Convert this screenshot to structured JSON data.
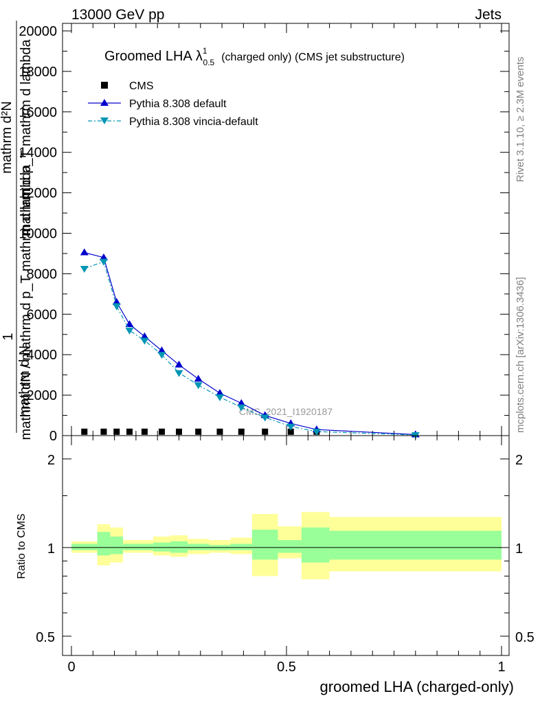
{
  "header": {
    "process": "13000 GeV pp",
    "category": "Jets"
  },
  "side_labels": {
    "rivet": "Rivet 3.1.10, ≥ 2.3M events",
    "mcplots": "mcplots.cern.ch [arXiv:1306.3436]"
  },
  "chart_data": [
    {
      "type": "line",
      "title": "Groomed LHA",
      "title_symbol": "λ",
      "title_sup": "1",
      "title_sub": "0.5",
      "title_suffix": "(charged only) (CMS jet substructure)",
      "analysis_id": "CMS_2021_I1920187",
      "ylabel_top": "1",
      "ylabel_num": "mathrm d²N",
      "ylabel_den": "mathrm d p_T mathrm d lambda",
      "ylabel_inner_num": "mathrm d N",
      "ylabel_inner_den": "mathrm dN / mathrm d p_T mathrm d lambda",
      "xlim": [
        0,
        1
      ],
      "ylim": [
        0,
        20000
      ],
      "yticks": [
        "0",
        "2000",
        "4000",
        "6000",
        "8000",
        "10000",
        "12000",
        "14000",
        "16000",
        "18000",
        "20000"
      ],
      "yticks_values": [
        0,
        2000,
        4000,
        6000,
        8000,
        10000,
        12000,
        14000,
        16000,
        18000,
        20000
      ],
      "legend_position": "top-left",
      "x": [
        0.03,
        0.075,
        0.105,
        0.135,
        0.17,
        0.21,
        0.25,
        0.295,
        0.345,
        0.395,
        0.45,
        0.51,
        0.57,
        0.8
      ],
      "series": [
        {
          "name": "CMS",
          "style": "markers",
          "marker": "square",
          "color": "#000000",
          "values": [
            40,
            40,
            40,
            40,
            40,
            40,
            40,
            40,
            40,
            40,
            40,
            40,
            40,
            null
          ]
        },
        {
          "name": "Pythia 8.308 default",
          "style": "solid",
          "marker": "triangle-up",
          "color": "#0000cc",
          "values": [
            9050,
            8800,
            6600,
            5500,
            4900,
            4200,
            3500,
            2800,
            2100,
            1600,
            1000,
            600,
            300,
            50
          ]
        },
        {
          "name": "Pythia 8.308 vincia-default",
          "style": "dashdot",
          "marker": "triangle-down",
          "color": "#0096b4",
          "values": [
            8250,
            8600,
            6400,
            5200,
            4700,
            4000,
            3100,
            2500,
            1900,
            1400,
            900,
            450,
            200,
            30
          ]
        }
      ]
    },
    {
      "type": "area",
      "ylabel": "Ratio to CMS",
      "xlabel": "groomed LHA (charged-only)",
      "xlim": [
        0,
        1
      ],
      "ylim": [
        0.43,
        2.4
      ],
      "log_y": true,
      "yticks": [
        "0.5",
        "1",
        "2"
      ],
      "yticks_values": [
        0.5,
        1,
        2
      ],
      "xticks": [
        "0",
        "0.5",
        "1"
      ],
      "xticks_values": [
        0,
        0.5,
        1
      ],
      "band_colors": {
        "inner": "#99ff99",
        "outer": "#ffff99"
      },
      "bins": [
        {
          "lo": 0.0,
          "hi": 0.06,
          "inner": [
            0.98,
            1.03
          ],
          "outer": [
            0.96,
            1.05
          ]
        },
        {
          "lo": 0.06,
          "hi": 0.09,
          "inner": [
            0.94,
            1.13
          ],
          "outer": [
            0.87,
            1.2
          ]
        },
        {
          "lo": 0.09,
          "hi": 0.12,
          "inner": [
            0.95,
            1.09
          ],
          "outer": [
            0.89,
            1.17
          ]
        },
        {
          "lo": 0.12,
          "hi": 0.15,
          "inner": [
            0.98,
            1.03
          ],
          "outer": [
            0.96,
            1.06
          ]
        },
        {
          "lo": 0.15,
          "hi": 0.19,
          "inner": [
            0.98,
            1.03
          ],
          "outer": [
            0.96,
            1.06
          ]
        },
        {
          "lo": 0.19,
          "hi": 0.23,
          "inner": [
            0.97,
            1.04
          ],
          "outer": [
            0.94,
            1.09
          ]
        },
        {
          "lo": 0.23,
          "hi": 0.27,
          "inner": [
            0.96,
            1.05
          ],
          "outer": [
            0.93,
            1.1
          ]
        },
        {
          "lo": 0.27,
          "hi": 0.32,
          "inner": [
            0.98,
            1.03
          ],
          "outer": [
            0.95,
            1.07
          ]
        },
        {
          "lo": 0.32,
          "hi": 0.37,
          "inner": [
            0.98,
            1.02
          ],
          "outer": [
            0.96,
            1.06
          ]
        },
        {
          "lo": 0.37,
          "hi": 0.42,
          "inner": [
            0.98,
            1.03
          ],
          "outer": [
            0.95,
            1.08
          ]
        },
        {
          "lo": 0.42,
          "hi": 0.48,
          "inner": [
            0.91,
            1.15
          ],
          "outer": [
            0.8,
            1.3
          ]
        },
        {
          "lo": 0.48,
          "hi": 0.535,
          "inner": [
            0.96,
            1.06
          ],
          "outer": [
            0.92,
            1.18
          ]
        },
        {
          "lo": 0.535,
          "hi": 0.6,
          "inner": [
            0.89,
            1.17
          ],
          "outer": [
            0.78,
            1.32
          ]
        },
        {
          "lo": 0.6,
          "hi": 1.0,
          "inner": [
            0.91,
            1.14
          ],
          "outer": [
            0.83,
            1.27
          ]
        }
      ]
    }
  ]
}
